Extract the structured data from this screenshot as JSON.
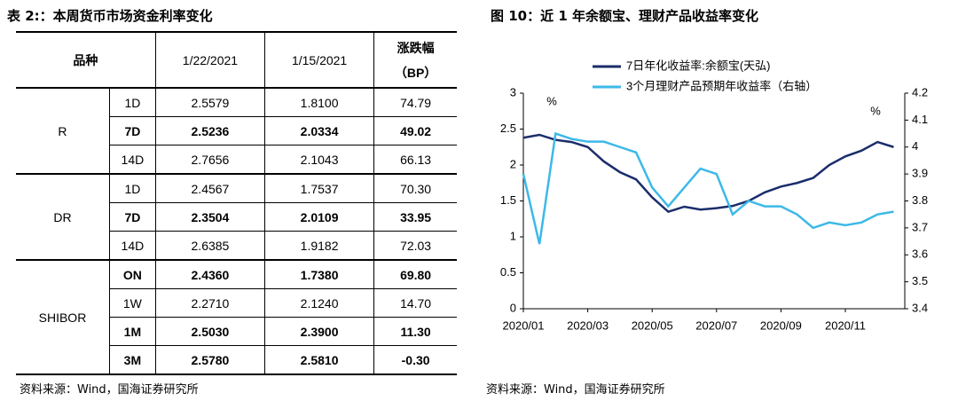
{
  "table_title": "表 2:：本周货币市场资金利率变化",
  "table": {
    "header": {
      "item": "品种",
      "dates": [
        "1/22/2021",
        "1/15/2021"
      ],
      "change": [
        "涨跌幅",
        "（BP）"
      ]
    },
    "groups": [
      {
        "name": "R",
        "bold": [
          false,
          true,
          false
        ],
        "rows": [
          [
            "1D",
            "2.5579",
            "1.8100",
            "74.79"
          ],
          [
            "7D",
            "2.5236",
            "2.0334",
            "49.02"
          ],
          [
            "14D",
            "2.7656",
            "2.1043",
            "66.13"
          ]
        ]
      },
      {
        "name": "DR",
        "bold": [
          false,
          true,
          false
        ],
        "rows": [
          [
            "1D",
            "2.4567",
            "1.7537",
            "70.30"
          ],
          [
            "7D",
            "2.3504",
            "2.0109",
            "33.95"
          ],
          [
            "14D",
            "2.6385",
            "1.9182",
            "72.03"
          ]
        ]
      },
      {
        "name": "SHIBOR",
        "bold": [
          true,
          false,
          true,
          true
        ],
        "rows": [
          [
            "ON",
            "2.4360",
            "1.7380",
            "69.80"
          ],
          [
            "1W",
            "2.2710",
            "2.1240",
            "14.70"
          ],
          [
            "1M",
            "2.5030",
            "2.3900",
            "11.30"
          ],
          [
            "3M",
            "2.5780",
            "2.5810",
            "-0.30"
          ]
        ]
      }
    ]
  },
  "table_source": "资料来源：Wind，国海证券研究所",
  "chart_data": {
    "type": "line",
    "title": "图 10：近 1 年余额宝、理财产品收益率变化",
    "categories": [
      "2020/01",
      null,
      null,
      null,
      "2020/03",
      null,
      null,
      null,
      "2020/05",
      null,
      null,
      null,
      "2020/07",
      null,
      null,
      null,
      "2020/09",
      null,
      null,
      null,
      "2020/11",
      null,
      null,
      null
    ],
    "series": [
      {
        "name": "7日年化收益率:余额宝(天弘)",
        "color": "#1b2d6b",
        "values": [
          2.38,
          2.42,
          2.35,
          2.32,
          2.25,
          2.05,
          1.9,
          1.8,
          1.55,
          1.35,
          1.42,
          1.38,
          1.4,
          1.43,
          1.5,
          1.62,
          1.7,
          1.75,
          1.82,
          2.0,
          2.12,
          2.2,
          2.32,
          2.25
        ]
      },
      {
        "name": "3个月理财产品预期年收益率（右轴）",
        "color": "#3cb9e8",
        "axis": "y2",
        "values": [
          3.9,
          3.64,
          4.05,
          4.03,
          4.02,
          4.02,
          4.0,
          3.98,
          3.85,
          3.78,
          3.85,
          3.92,
          3.9,
          3.75,
          3.8,
          3.78,
          3.78,
          3.75,
          3.7,
          3.72,
          3.71,
          3.72,
          3.75,
          3.76
        ]
      }
    ],
    "ylim": [
      0,
      3
    ],
    "yticks": [
      0,
      0.5,
      1,
      1.5,
      2,
      2.5,
      3
    ],
    "y2lim": [
      3.4,
      4.2
    ],
    "y2ticks": [
      3.4,
      3.5,
      3.6,
      3.7,
      3.8,
      3.9,
      4,
      4.1,
      4.2
    ],
    "annotations": [
      "%",
      "%"
    ],
    "grid": false
  },
  "chart_source": "资料来源：Wind，国海证券研究所"
}
